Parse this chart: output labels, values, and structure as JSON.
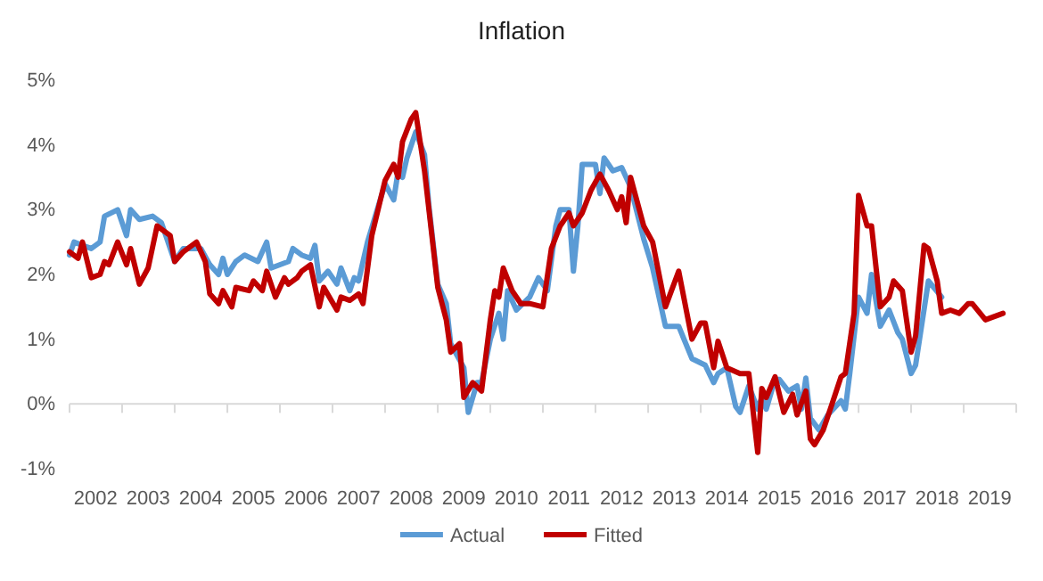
{
  "chart_data": {
    "type": "line",
    "title": "Inflation",
    "legend": "bottom",
    "line_style": "solid",
    "xlim": [
      "2002-01-01",
      "2020-01-01"
    ],
    "xticks": [
      {
        "value": "2002-01-01",
        "label": null
      },
      {
        "value": "2002-07-01",
        "label": "2002"
      },
      {
        "value": "2003-01-01",
        "label": null
      },
      {
        "value": "2003-07-01",
        "label": "2003"
      },
      {
        "value": "2004-01-01",
        "label": null
      },
      {
        "value": "2004-07-01",
        "label": "2004"
      },
      {
        "value": "2005-01-01",
        "label": null
      },
      {
        "value": "2005-07-01",
        "label": "2005"
      },
      {
        "value": "2006-01-01",
        "label": null
      },
      {
        "value": "2006-07-01",
        "label": "2006"
      },
      {
        "value": "2007-01-01",
        "label": null
      },
      {
        "value": "2007-07-01",
        "label": "2007"
      },
      {
        "value": "2008-01-01",
        "label": null
      },
      {
        "value": "2008-07-01",
        "label": "2008"
      },
      {
        "value": "2009-01-01",
        "label": null
      },
      {
        "value": "2009-07-01",
        "label": "2009"
      },
      {
        "value": "2010-01-01",
        "label": null
      },
      {
        "value": "2010-07-01",
        "label": "2010"
      },
      {
        "value": "2011-01-01",
        "label": null
      },
      {
        "value": "2011-07-01",
        "label": "2011"
      },
      {
        "value": "2012-01-01",
        "label": null
      },
      {
        "value": "2012-07-01",
        "label": "2012"
      },
      {
        "value": "2013-01-01",
        "label": null
      },
      {
        "value": "2013-07-01",
        "label": "2013"
      },
      {
        "value": "2014-01-01",
        "label": null
      },
      {
        "value": "2014-07-01",
        "label": "2014"
      },
      {
        "value": "2015-01-01",
        "label": null
      },
      {
        "value": "2015-07-01",
        "label": "2015"
      },
      {
        "value": "2016-01-01",
        "label": null
      },
      {
        "value": "2016-07-01",
        "label": "2016"
      },
      {
        "value": "2017-01-01",
        "label": null
      },
      {
        "value": "2017-07-01",
        "label": "2017"
      },
      {
        "value": "2018-01-01",
        "label": null
      },
      {
        "value": "2018-07-01",
        "label": "2018"
      },
      {
        "value": "2019-01-01",
        "label": null
      },
      {
        "value": "2019-07-01",
        "label": "2019"
      },
      {
        "value": "2020-01-01",
        "label": null
      }
    ],
    "ylim": [
      -1,
      5
    ],
    "yticks": [
      {
        "value": -1,
        "label": "-1%"
      },
      {
        "value": 0,
        "label": "0%"
      },
      {
        "value": 1,
        "label": "1%"
      },
      {
        "value": 2,
        "label": "2%"
      },
      {
        "value": 3,
        "label": "3%"
      },
      {
        "value": 4,
        "label": "4%"
      },
      {
        "value": 5,
        "label": "5%"
      }
    ],
    "series": [
      {
        "name": "Actual",
        "color": "#5b9bd5",
        "x": [
          "2002-01",
          "2002-02",
          "2002-04",
          "2002-06",
          "2002-08",
          "2002-09",
          "2002-12",
          "2003-02",
          "2003-03",
          "2003-05",
          "2003-08",
          "2003-10",
          "2004-01",
          "2004-03",
          "2004-07",
          "2004-09",
          "2004-11",
          "2004-12",
          "2005-01",
          "2005-03",
          "2005-05",
          "2005-08",
          "2005-10",
          "2005-11",
          "2006-03",
          "2006-04",
          "2006-06",
          "2006-08",
          "2006-09",
          "2006-10",
          "2006-12",
          "2007-02",
          "2007-03",
          "2007-05",
          "2007-06",
          "2007-07",
          "2007-09",
          "2007-11",
          "2008-01",
          "2008-03",
          "2008-04",
          "2008-05",
          "2008-06",
          "2008-08",
          "2008-10",
          "2008-11",
          "2009-01",
          "2009-03",
          "2009-04",
          "2009-07",
          "2009-08",
          "2009-10",
          "2009-11",
          "2010-01",
          "2010-03",
          "2010-04",
          "2010-05",
          "2010-07",
          "2010-10",
          "2010-12",
          "2011-02",
          "2011-04",
          "2011-05",
          "2011-07",
          "2011-08",
          "2011-09",
          "2011-10",
          "2012-01",
          "2012-02",
          "2012-03",
          "2012-05",
          "2012-07",
          "2012-09",
          "2012-12",
          "2013-02",
          "2013-05",
          "2013-08",
          "2013-11",
          "2014-02",
          "2014-04",
          "2014-05",
          "2014-07",
          "2014-09",
          "2014-10",
          "2014-12",
          "2015-02",
          "2015-03",
          "2015-04",
          "2015-06",
          "2015-07",
          "2015-09",
          "2015-11",
          "2015-12",
          "2016-01",
          "2016-02",
          "2016-04",
          "2016-06",
          "2016-09",
          "2016-10",
          "2016-11",
          "2017-01",
          "2017-03",
          "2017-04",
          "2017-06",
          "2017-08",
          "2017-10",
          "2017-11",
          "2018-01",
          "2018-02",
          "2018-05",
          "2018-08"
        ],
        "values": [
          2.3,
          2.5,
          2.45,
          2.4,
          2.5,
          2.9,
          3.0,
          2.6,
          3.0,
          2.85,
          2.9,
          2.8,
          2.2,
          2.4,
          2.4,
          2.15,
          2.0,
          2.25,
          2.0,
          2.2,
          2.3,
          2.2,
          2.5,
          2.1,
          2.2,
          2.4,
          2.3,
          2.25,
          2.45,
          1.9,
          2.05,
          1.85,
          2.1,
          1.75,
          1.95,
          1.9,
          2.5,
          2.95,
          3.4,
          3.15,
          3.6,
          3.5,
          3.8,
          4.2,
          3.85,
          3.05,
          1.85,
          1.55,
          0.93,
          0.56,
          -0.13,
          0.33,
          0.33,
          1.0,
          1.4,
          1.0,
          1.75,
          1.45,
          1.65,
          1.95,
          1.75,
          2.75,
          3.0,
          3.0,
          2.05,
          2.75,
          3.7,
          3.7,
          3.25,
          3.8,
          3.6,
          3.65,
          3.35,
          2.55,
          2.1,
          1.2,
          1.2,
          0.7,
          0.6,
          0.33,
          0.47,
          0.56,
          -0.04,
          -0.13,
          0.28,
          -0.08,
          0.1,
          -0.08,
          0.38,
          0.38,
          0.2,
          0.28,
          -0.08,
          0.4,
          -0.22,
          -0.4,
          -0.17,
          0.05,
          -0.08,
          0.47,
          1.65,
          1.4,
          2.0,
          1.2,
          1.45,
          1.1,
          1.0,
          0.47,
          0.6,
          1.9,
          1.65
        ]
      },
      {
        "name": "Fitted",
        "color": "#c00000",
        "x": [
          "2002-01",
          "2002-03",
          "2002-04",
          "2002-06",
          "2002-08",
          "2002-09",
          "2002-10",
          "2002-12",
          "2003-02",
          "2003-03",
          "2003-05",
          "2003-07",
          "2003-09",
          "2003-12",
          "2004-01",
          "2004-03",
          "2004-06",
          "2004-08",
          "2004-09",
          "2004-11",
          "2004-12",
          "2005-02",
          "2005-03",
          "2005-06",
          "2005-07",
          "2005-09",
          "2005-10",
          "2005-12",
          "2006-02",
          "2006-03",
          "2006-05",
          "2006-06",
          "2006-08",
          "2006-10",
          "2006-11",
          "2007-02",
          "2007-03",
          "2007-05",
          "2007-07",
          "2007-08",
          "2007-10",
          "2008-01",
          "2008-03",
          "2008-04",
          "2008-05",
          "2008-07",
          "2008-08",
          "2008-10",
          "2009-01",
          "2009-03",
          "2009-04",
          "2009-06",
          "2009-07",
          "2009-09",
          "2009-11",
          "2010-01",
          "2010-02",
          "2010-03",
          "2010-04",
          "2010-06",
          "2010-08",
          "2010-10",
          "2011-01",
          "2011-03",
          "2011-05",
          "2011-07",
          "2011-08",
          "2011-10",
          "2011-12",
          "2012-02",
          "2012-04",
          "2012-06",
          "2012-07",
          "2012-08",
          "2012-09",
          "2012-12",
          "2013-02",
          "2013-05",
          "2013-08",
          "2013-11",
          "2014-01",
          "2014-02",
          "2014-04",
          "2014-05",
          "2014-07",
          "2014-10",
          "2014-12",
          "2015-02",
          "2015-03",
          "2015-04",
          "2015-06",
          "2015-08",
          "2015-10",
          "2015-11",
          "2016-01",
          "2016-02",
          "2016-03",
          "2016-05",
          "2016-07",
          "2016-09",
          "2016-10",
          "2016-12",
          "2017-01",
          "2017-03",
          "2017-04",
          "2017-06",
          "2017-08",
          "2017-09",
          "2017-11",
          "2018-01",
          "2018-02",
          "2018-04",
          "2018-05",
          "2018-07",
          "2018-08",
          "2018-10",
          "2018-12",
          "2019-02",
          "2019-03",
          "2019-06",
          "2019-10"
        ],
        "values": [
          2.35,
          2.25,
          2.5,
          1.95,
          2.0,
          2.2,
          2.15,
          2.5,
          2.15,
          2.4,
          1.85,
          2.1,
          2.75,
          2.6,
          2.2,
          2.35,
          2.5,
          2.2,
          1.7,
          1.55,
          1.75,
          1.5,
          1.8,
          1.75,
          1.9,
          1.75,
          2.05,
          1.65,
          1.95,
          1.85,
          1.95,
          2.05,
          2.15,
          1.5,
          1.8,
          1.45,
          1.65,
          1.6,
          1.7,
          1.55,
          2.6,
          3.45,
          3.7,
          3.5,
          4.05,
          4.4,
          4.5,
          3.6,
          1.8,
          1.3,
          0.8,
          0.93,
          0.1,
          0.33,
          0.2,
          1.3,
          1.75,
          1.65,
          2.1,
          1.75,
          1.55,
          1.55,
          1.5,
          2.4,
          2.75,
          2.95,
          2.75,
          2.95,
          3.3,
          3.55,
          3.3,
          3.0,
          3.2,
          2.8,
          3.5,
          2.75,
          2.5,
          1.5,
          2.05,
          1.0,
          1.25,
          1.25,
          0.56,
          0.97,
          0.56,
          0.47,
          0.47,
          -0.75,
          0.24,
          0.1,
          0.42,
          -0.13,
          0.15,
          -0.17,
          0.2,
          -0.54,
          -0.63,
          -0.4,
          0.0,
          0.42,
          0.47,
          1.4,
          3.22,
          2.75,
          2.75,
          1.5,
          1.65,
          1.9,
          1.75,
          0.8,
          1.05,
          2.45,
          2.4,
          1.9,
          1.4,
          1.45,
          1.4,
          1.55,
          1.55,
          1.3,
          1.4
        ]
      }
    ]
  }
}
